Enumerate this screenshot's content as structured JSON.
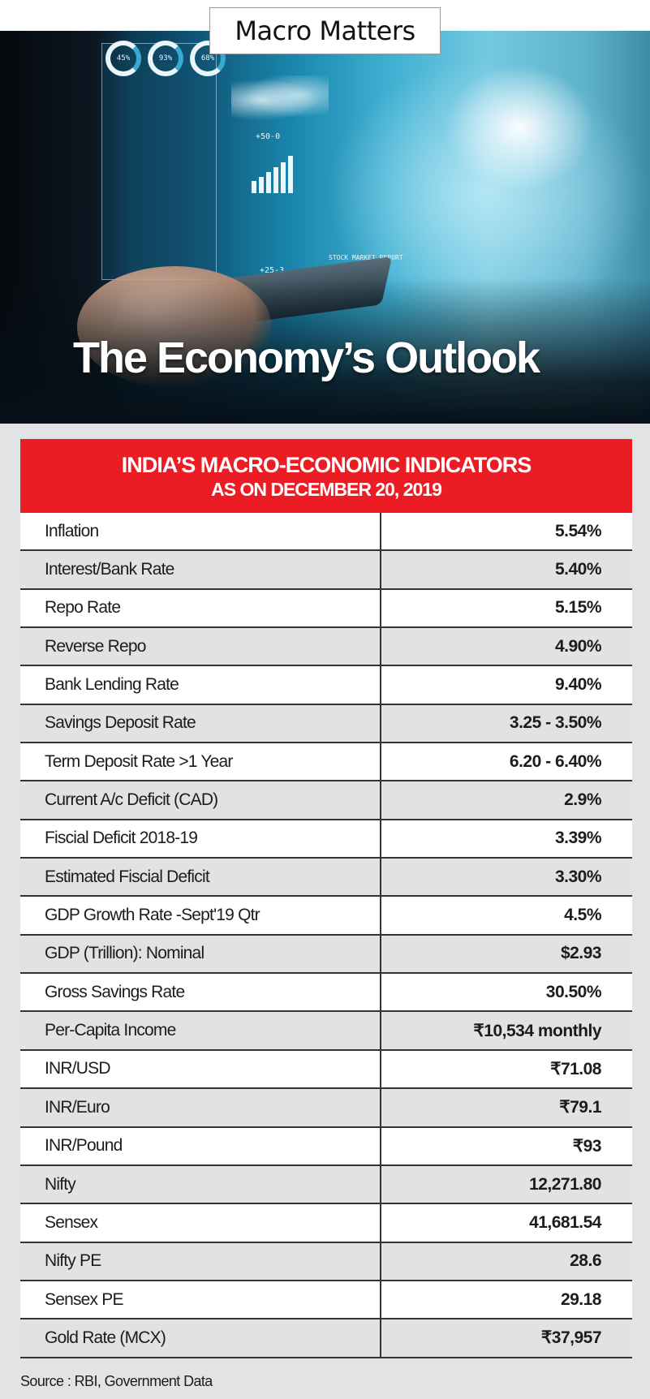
{
  "masthead": "Macro Matters",
  "banner": {
    "title": "The Economy’s Outlook",
    "ring_labels": [
      "45%",
      "93%",
      "68%"
    ],
    "chart_labels": [
      "+50-0",
      "+25-3",
      "STOCK MARKET REPORT"
    ]
  },
  "card": {
    "title": "INDIA’S MACRO-ECONOMIC INDICATORS",
    "subtitle": "AS ON DECEMBER 20, 2019",
    "header_color": "#ec1c24",
    "rows": [
      {
        "label": "Inflation",
        "value": "5.54%"
      },
      {
        "label": "Interest/Bank Rate",
        "value": "5.40%"
      },
      {
        "label": "Repo Rate",
        "value": "5.15%"
      },
      {
        "label": "Reverse Repo",
        "value": "4.90%"
      },
      {
        "label": "Bank Lending Rate",
        "value": "9.40%"
      },
      {
        "label": "Savings Deposit Rate",
        "value": "3.25 - 3.50%"
      },
      {
        "label": "Term Deposit Rate >1 Year",
        "value": "6.20 - 6.40%"
      },
      {
        "label": "Current A/c Deficit (CAD)",
        "value": "2.9%"
      },
      {
        "label": "Fiscial Deficit 2018-19",
        "value": "3.39%"
      },
      {
        "label": "Estimated Fiscial Deficit",
        "value": "3.30%"
      },
      {
        "label": "GDP Growth Rate -Sept'19 Qtr",
        "value": "4.5%"
      },
      {
        "label": "GDP (Trillion): Nominal",
        "value": "$2.93"
      },
      {
        "label": "Gross Savings Rate",
        "value": "30.50%"
      },
      {
        "label": "Per-Capita Income",
        "value": "₹10,534 monthly"
      },
      {
        "label": "INR/USD",
        "value": "₹71.08"
      },
      {
        "label": "INR/Euro",
        "value": "₹79.1"
      },
      {
        "label": "INR/Pound",
        "value": "₹93"
      },
      {
        "label": "Nifty",
        "value": "12,271.80"
      },
      {
        "label": "Sensex",
        "value": "41,681.54"
      },
      {
        "label": "Nifty PE",
        "value": "28.6"
      },
      {
        "label": "Sensex PE",
        "value": "29.18"
      },
      {
        "label": "Gold Rate (MCX)",
        "value": "₹37,957"
      }
    ]
  },
  "source": "Source : RBI, Government Data"
}
